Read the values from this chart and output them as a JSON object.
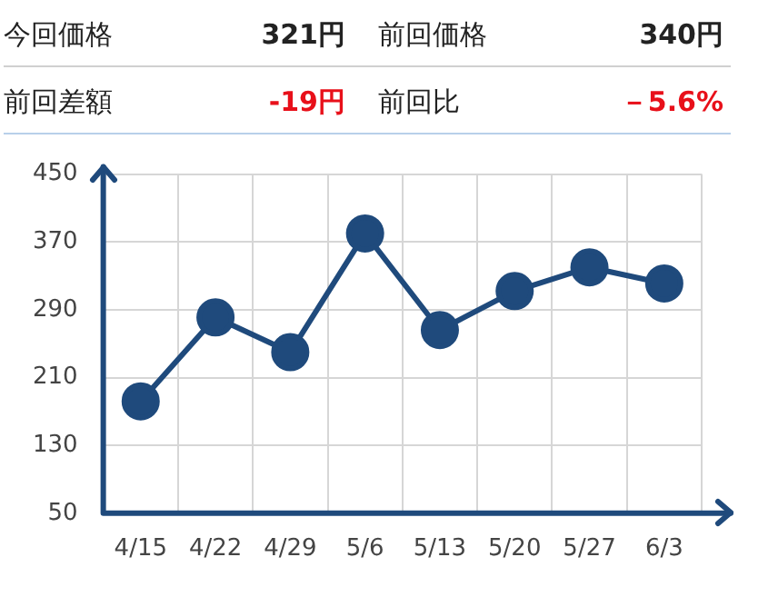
{
  "chart_data": {
    "type": "line",
    "annotations": [
      "今回価格",
      "321円",
      "前回価格",
      "340円",
      "前回差額",
      "-19円",
      "前回比",
      "－5.6%"
    ],
    "categories": [
      "4/15",
      "4/22",
      "4/29",
      "5/6",
      "5/13",
      "5/20",
      "5/27",
      "6/3"
    ],
    "series": [
      {
        "color": "#1f4a7c",
        "values": [
          182,
          281,
          240,
          380,
          266,
          312,
          340,
          321
        ]
      }
    ],
    "ylim": [
      50,
      450
    ],
    "yticks": [
      50,
      130,
      210,
      290,
      370,
      450
    ],
    "grid": true,
    "legend": false,
    "marker": "circle",
    "line_style": "solid"
  }
}
